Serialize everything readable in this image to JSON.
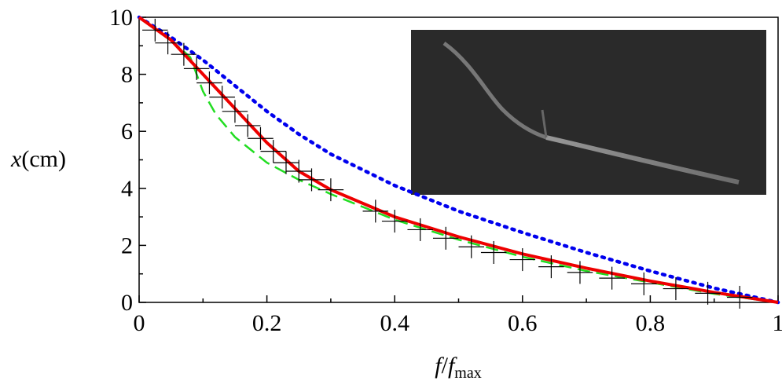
{
  "chart_data": {
    "type": "line",
    "ylabel_parts": [
      "x",
      "(cm)"
    ],
    "xlabel_parts": [
      "f",
      "/",
      "f",
      "max"
    ],
    "xlim": [
      0,
      1
    ],
    "ylim": [
      0,
      10
    ],
    "xticks": [
      0,
      0.2,
      0.4,
      0.6,
      0.8,
      1
    ],
    "yticks": [
      0,
      2,
      4,
      6,
      8,
      10
    ],
    "xminor": [
      0.1,
      0.3,
      0.5,
      0.7,
      0.9
    ],
    "yminor": [
      1,
      3,
      5,
      7,
      9
    ],
    "series": [
      {
        "color": "#0000ee",
        "style": "dotted",
        "x": [
          0,
          0.05,
          0.1,
          0.15,
          0.2,
          0.25,
          0.3,
          0.4,
          0.5,
          0.6,
          0.7,
          0.8,
          0.9,
          1
        ],
        "values": [
          10,
          9.3,
          8.5,
          7.6,
          6.7,
          5.9,
          5.2,
          4.1,
          3.2,
          2.45,
          1.75,
          1.1,
          0.5,
          0
        ]
      },
      {
        "color": "#22dd22",
        "style": "dashed",
        "x": [
          0,
          0.05,
          0.08,
          0.1,
          0.12,
          0.15,
          0.2,
          0.25,
          0.3,
          0.4,
          0.5,
          0.6,
          0.7,
          0.8,
          0.9,
          1
        ],
        "values": [
          10,
          9.2,
          8.6,
          7.4,
          6.6,
          5.8,
          4.9,
          4.3,
          3.8,
          2.9,
          2.2,
          1.6,
          1.1,
          0.7,
          0.3,
          0
        ]
      },
      {
        "color": "#ee0000",
        "style": "solid",
        "x": [
          0,
          0.05,
          0.1,
          0.15,
          0.2,
          0.25,
          0.3,
          0.4,
          0.5,
          0.6,
          0.7,
          0.8,
          0.9,
          1
        ],
        "values": [
          10,
          9.2,
          8,
          6.8,
          5.6,
          4.6,
          3.95,
          3.0,
          2.3,
          1.7,
          1.2,
          0.75,
          0.35,
          0
        ]
      },
      {
        "color": "#000000",
        "style": "crosses",
        "xerr": 0.02,
        "yerr": 0.4,
        "x": [
          0.025,
          0.045,
          0.07,
          0.09,
          0.11,
          0.13,
          0.15,
          0.17,
          0.19,
          0.21,
          0.23,
          0.25,
          0.27,
          0.3,
          0.37,
          0.4,
          0.44,
          0.48,
          0.52,
          0.555,
          0.6,
          0.645,
          0.69,
          0.74,
          0.79,
          0.84,
          0.89,
          0.94
        ],
        "values": [
          9.55,
          9.1,
          8.7,
          8.2,
          7.7,
          7.2,
          6.7,
          6.2,
          5.75,
          5.3,
          4.9,
          4.6,
          4.3,
          3.95,
          3.2,
          2.85,
          2.55,
          2.25,
          1.95,
          1.75,
          1.5,
          1.25,
          1.05,
          0.85,
          0.65,
          0.48,
          0.32,
          0.18
        ]
      }
    ]
  }
}
